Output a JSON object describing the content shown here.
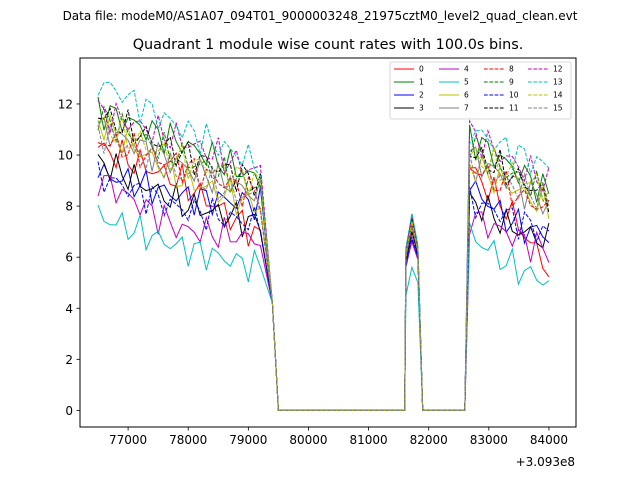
{
  "chart_data": {
    "type": "line",
    "suptitle": "Data file: modeM0/AS1A07_094T01_9000003248_21975cztM0_level2_quad_clean.evt",
    "title": "Quadrant 1 module wise count rates with 100.0s bins.",
    "xlabel": "",
    "ylabel": "",
    "x_offset_label": "+3.093e8",
    "xlim": [
      76200,
      84450
    ],
    "ylim": [
      -0.65,
      13.8
    ],
    "x_ticks": [
      77000,
      78000,
      79000,
      80000,
      81000,
      82000,
      83000,
      84000
    ],
    "x_tick_labels": [
      "77000",
      "78000",
      "79000",
      "80000",
      "81000",
      "82000",
      "83000",
      "84000"
    ],
    "y_ticks": [
      0,
      2,
      4,
      6,
      8,
      10,
      12
    ],
    "y_tick_labels": [
      "0",
      "2",
      "4",
      "6",
      "8",
      "10",
      "12"
    ],
    "grid": false,
    "legend_position": "top-right",
    "segments": [
      {
        "x_start": 76500,
        "x_end": 79200,
        "n": 28
      },
      {
        "x_start": 81620,
        "x_end": 81820,
        "n": 3
      },
      {
        "x_start": 82680,
        "x_end": 84000,
        "n": 14
      }
    ],
    "gap_points": {
      "x": [
        79400,
        79500,
        81500,
        81600,
        81900,
        82000,
        82500,
        82600
      ],
      "y": [
        4.2,
        0,
        0,
        0,
        0,
        0,
        0,
        0
      ]
    },
    "series": [
      {
        "name": "0",
        "color": "#ff0000",
        "dash": "solid",
        "segment_levels": [
          [
            10.3,
            9.0,
            6.8
          ],
          [
            6.0,
            7.2,
            6.2
          ],
          [
            9.5,
            7.8,
            5.5
          ]
        ]
      },
      {
        "name": "1",
        "color": "#008000",
        "dash": "solid",
        "segment_levels": [
          [
            11.8,
            10.5,
            9.0
          ],
          [
            6.2,
            7.7,
            6.4
          ],
          [
            10.7,
            9.6,
            8.5
          ]
        ]
      },
      {
        "name": "2",
        "color": "#0000ff",
        "dash": "solid",
        "segment_levels": [
          [
            9.3,
            8.4,
            8.1
          ],
          [
            5.6,
            6.7,
            6.0
          ],
          [
            8.8,
            7.4,
            6.8
          ]
        ]
      },
      {
        "name": "3",
        "color": "#000000",
        "dash": "solid",
        "segment_levels": [
          [
            9.8,
            8.1,
            7.3
          ],
          [
            5.8,
            7.0,
            6.1
          ],
          [
            8.3,
            7.2,
            6.6
          ]
        ]
      },
      {
        "name": "4",
        "color": "#bf00bf",
        "dash": "solid",
        "segment_levels": [
          [
            9.1,
            7.1,
            6.7
          ],
          [
            5.7,
            6.6,
            5.9
          ],
          [
            7.6,
            6.9,
            6.2
          ]
        ]
      },
      {
        "name": "5",
        "color": "#00bfbf",
        "dash": "solid",
        "segment_levels": [
          [
            7.6,
            6.4,
            5.6
          ],
          [
            4.5,
            5.6,
            5.0
          ],
          [
            6.9,
            5.7,
            5.0
          ]
        ]
      },
      {
        "name": "6",
        "color": "#bfbf00",
        "dash": "solid",
        "segment_levels": [
          [
            11.3,
            9.1,
            8.0
          ],
          [
            6.0,
            7.4,
            6.2
          ],
          [
            9.6,
            8.8,
            7.9
          ]
        ]
      },
      {
        "name": "7",
        "color": "#808080",
        "dash": "solid",
        "segment_levels": [
          [
            11.1,
            9.6,
            8.4
          ],
          [
            6.1,
            7.3,
            6.3
          ],
          [
            10.0,
            9.0,
            8.0
          ]
        ]
      },
      {
        "name": "8",
        "color": "#ff0000",
        "dash": "dashed",
        "segment_levels": [
          [
            10.6,
            9.6,
            8.4
          ],
          [
            6.1,
            7.3,
            6.2
          ],
          [
            9.6,
            8.6,
            7.8
          ]
        ]
      },
      {
        "name": "9",
        "color": "#008000",
        "dash": "dashed",
        "segment_levels": [
          [
            11.5,
            9.9,
            8.7
          ],
          [
            6.2,
            7.5,
            6.3
          ],
          [
            10.4,
            9.3,
            8.4
          ]
        ]
      },
      {
        "name": "10",
        "color": "#0000ff",
        "dash": "dashed",
        "segment_levels": [
          [
            9.2,
            7.9,
            7.3
          ],
          [
            5.7,
            6.8,
            6.0
          ],
          [
            8.2,
            7.6,
            6.9
          ]
        ]
      },
      {
        "name": "11",
        "color": "#000000",
        "dash": "dashed",
        "segment_levels": [
          [
            11.6,
            10.1,
            8.9
          ],
          [
            6.2,
            7.5,
            6.3
          ],
          [
            10.1,
            9.3,
            8.3
          ]
        ]
      },
      {
        "name": "12",
        "color": "#bf00bf",
        "dash": "dashed",
        "segment_levels": [
          [
            11.7,
            10.6,
            9.3
          ],
          [
            6.3,
            7.6,
            6.4
          ],
          [
            10.9,
            9.8,
            8.9
          ]
        ]
      },
      {
        "name": "13",
        "color": "#00bfbf",
        "dash": "dashed",
        "segment_levels": [
          [
            12.9,
            11.1,
            9.6
          ],
          [
            6.4,
            7.7,
            6.5
          ],
          [
            11.0,
            10.2,
            9.5
          ]
        ]
      },
      {
        "name": "14",
        "color": "#bfbf00",
        "dash": "dashed",
        "segment_levels": [
          [
            11.2,
            9.8,
            8.9
          ],
          [
            6.1,
            7.4,
            6.3
          ],
          [
            10.0,
            9.3,
            8.6
          ]
        ]
      },
      {
        "name": "15",
        "color": "#808080",
        "dash": "dashed",
        "segment_levels": [
          [
            10.9,
            9.3,
            8.2
          ],
          [
            6.0,
            7.2,
            6.2
          ],
          [
            9.8,
            8.9,
            8.2
          ]
        ]
      }
    ]
  }
}
